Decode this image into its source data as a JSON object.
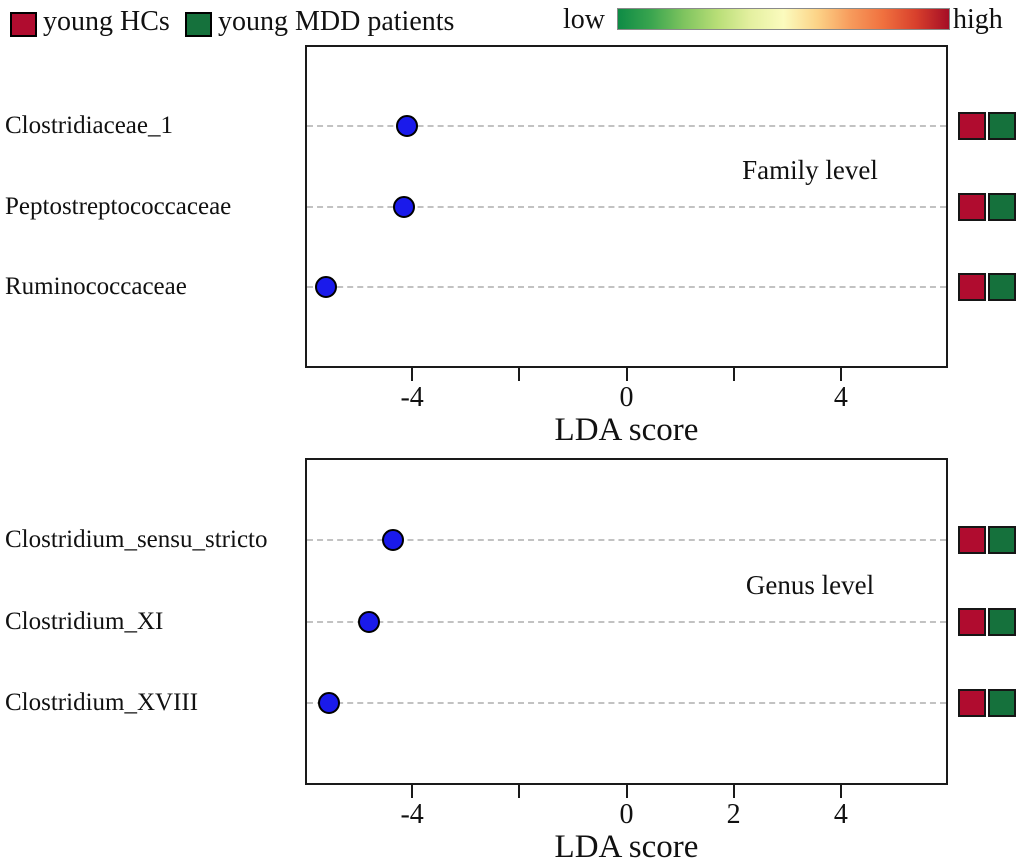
{
  "legend": {
    "items": [
      {
        "label": "young HCs",
        "color": "#B00C2F"
      },
      {
        "label": "young MDD patients",
        "color": "#15713C"
      }
    ]
  },
  "colorbar": {
    "low_label": "low",
    "high_label": "high",
    "gradient_stops": [
      "#0E8B45",
      "#3AA54F",
      "#7FC45F",
      "#B8DE77",
      "#E4F0A0",
      "#FBFBBE",
      "#FCD488",
      "#F79C5D",
      "#F0713F",
      "#D8402C",
      "#A50D26"
    ]
  },
  "marker_color": "#1A1AEB",
  "group_square_colors": [
    "#B00C2F",
    "#15713C"
  ],
  "chart_data": [
    {
      "type": "scatter",
      "title": "Family level",
      "xlabel": "LDA score",
      "xlim": [
        -6,
        6
      ],
      "xticks": [
        {
          "value": -4,
          "label": "-4"
        },
        {
          "value": -2,
          "label": ""
        },
        {
          "value": 0,
          "label": "0"
        },
        {
          "value": 2,
          "label": ""
        },
        {
          "value": 4,
          "label": "4"
        }
      ],
      "categories": [
        "Clostridiaceae_1",
        "Peptostreptococcaceae",
        "Ruminococcaceae"
      ],
      "values": [
        -4.1,
        -4.15,
        -5.6
      ],
      "legend_groups_per_row": [
        "young HCs",
        "young MDD patients"
      ],
      "grid": "dashed-horizontal",
      "marker": "blue-dot"
    },
    {
      "type": "scatter",
      "title": "Genus level",
      "xlabel": "LDA score",
      "xlim": [
        -6,
        6
      ],
      "xticks": [
        {
          "value": -4,
          "label": "-4"
        },
        {
          "value": -2,
          "label": ""
        },
        {
          "value": 0,
          "label": "0"
        },
        {
          "value": 2,
          "label": "2"
        },
        {
          "value": 4,
          "label": "4"
        }
      ],
      "categories": [
        "Clostridium_sensu_stricto",
        "Clostridium_XI",
        "Clostridium_XVIII"
      ],
      "values": [
        -4.35,
        -4.8,
        -5.55
      ],
      "legend_groups_per_row": [
        "young HCs",
        "young MDD patients"
      ],
      "grid": "dashed-horizontal",
      "marker": "blue-dot"
    }
  ]
}
